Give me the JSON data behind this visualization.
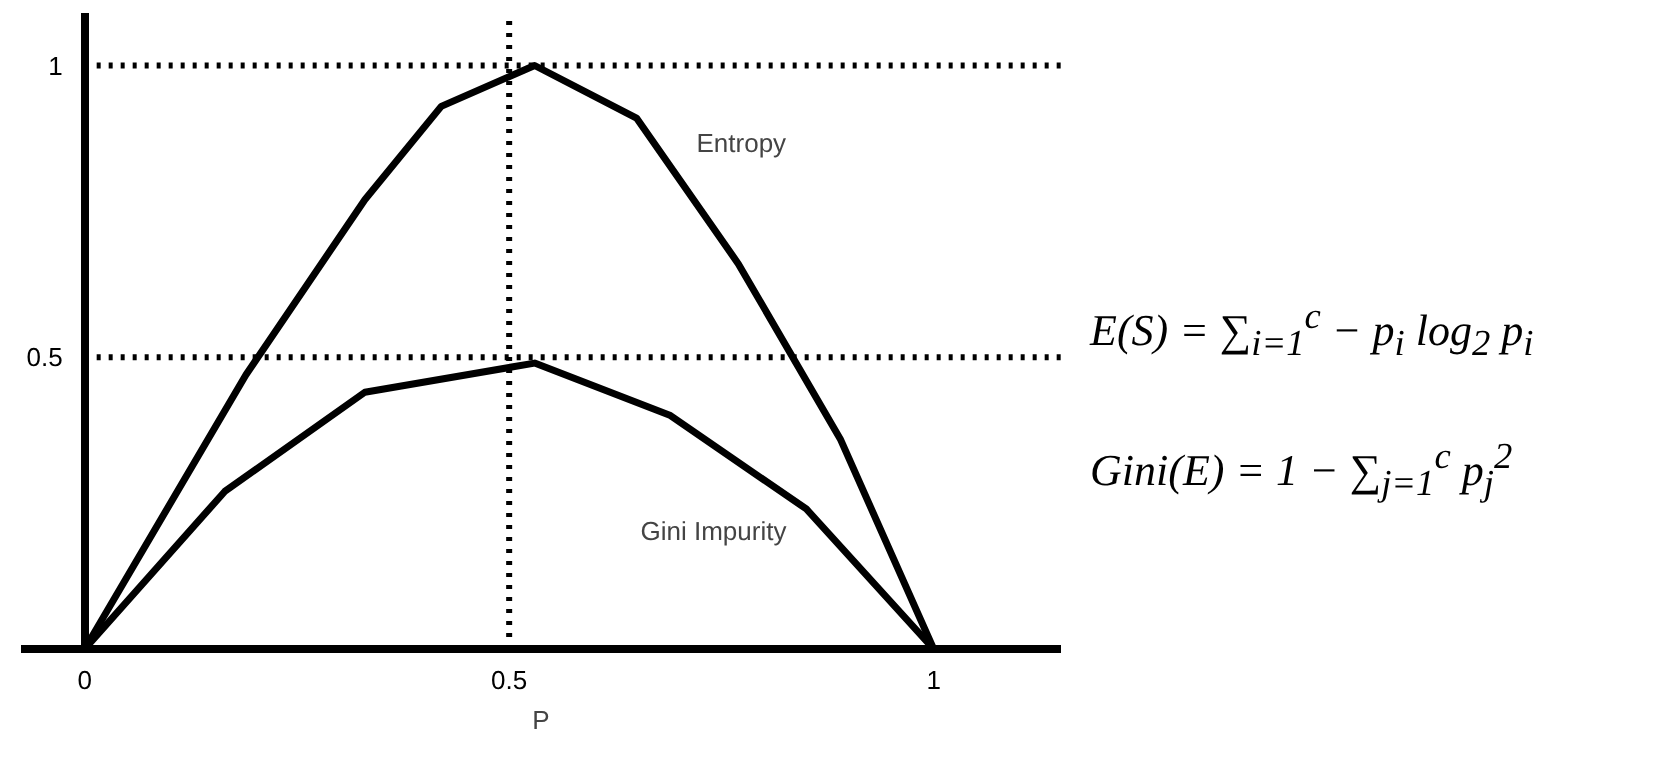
{
  "chart_data": {
    "type": "line",
    "xlabel": "P",
    "series": [
      {
        "name": "Entropy",
        "color": "#000000",
        "x": [
          0,
          0.19,
          0.33,
          0.42,
          0.53,
          0.65,
          0.77,
          0.89,
          1.0
        ],
        "values": [
          0,
          0.47,
          0.77,
          0.93,
          1.0,
          0.91,
          0.66,
          0.36,
          0
        ]
      },
      {
        "name": "Gini Impurity",
        "color": "#000000",
        "x": [
          0,
          0.165,
          0.33,
          0.53,
          0.69,
          0.85,
          1.0
        ],
        "values": [
          0,
          0.27,
          0.44,
          0.49,
          0.4,
          0.24,
          0
        ]
      }
    ],
    "xlim": [
      -0.075,
      1.15
    ],
    "ylim": [
      0,
      1.09
    ],
    "xticks": [
      0,
      0.5,
      1
    ],
    "yticks": [
      0.5,
      1
    ],
    "ref_lines": [
      {
        "axis": "x",
        "value": 0.5,
        "color": "#000000",
        "line_style": "dotted"
      },
      {
        "axis": "y",
        "value": 1,
        "color": "#000000",
        "line_style": "dotted"
      },
      {
        "axis": "y",
        "value": 0.5,
        "color": "#000000",
        "line_style": "dotted"
      }
    ],
    "annotations": [
      "E(S) = ∑$_{i=1}$$^{c}$ − p$_{i}$ log$_{2}$ p$_{i}$",
      "Gini(E) = 1 − ∑$_{j=1}$$^{c}$ p$_{j}$$^{2}$"
    ],
    "grid": false,
    "marker": "none",
    "line_style": "solid"
  }
}
